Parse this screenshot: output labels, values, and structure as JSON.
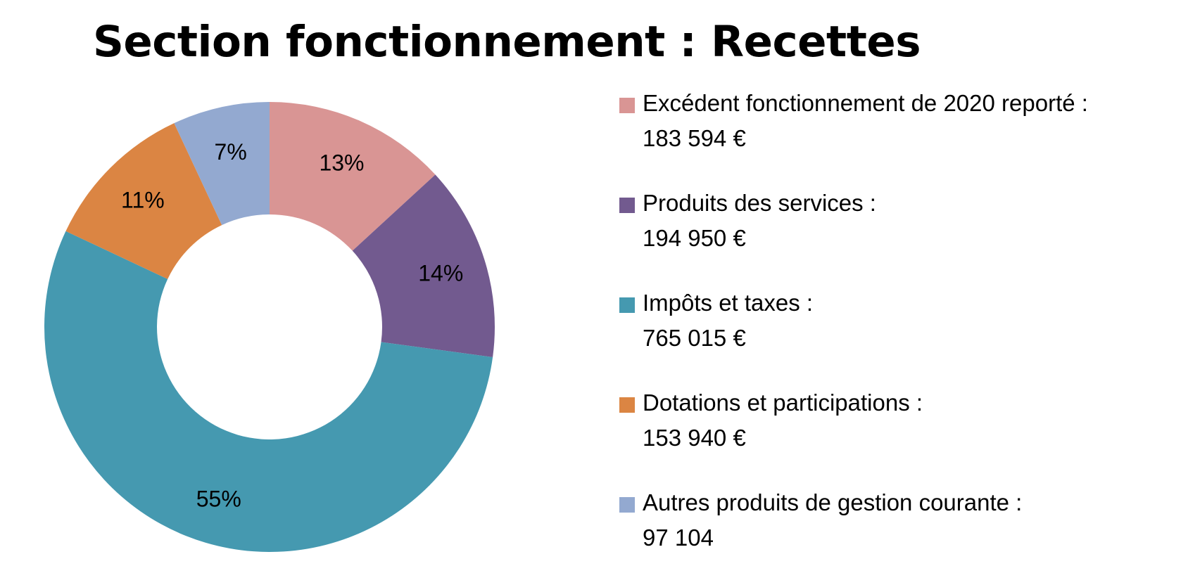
{
  "chart_data": {
    "type": "pie",
    "title": "Section fonctionnement : Recettes",
    "legend_position": "right",
    "categories": [
      "Excédent fonctionnement de 2020 reporté :",
      "Produits des services :",
      "Impôts et taxes :",
      "Dotations et participations :",
      "Autres produits de gestion courante :"
    ],
    "amounts": [
      "183 594 €",
      "194 950 €",
      "765 015 €",
      "153 940 €",
      "97 104"
    ],
    "values": [
      183594,
      194950,
      765015,
      153940,
      97104
    ],
    "percent_labels": [
      "13%",
      "14%",
      "55%",
      "11%",
      "7%"
    ],
    "colors": [
      "#D99594",
      "#725A8F",
      "#4599B0",
      "#DB8543",
      "#93A9D0"
    ]
  }
}
